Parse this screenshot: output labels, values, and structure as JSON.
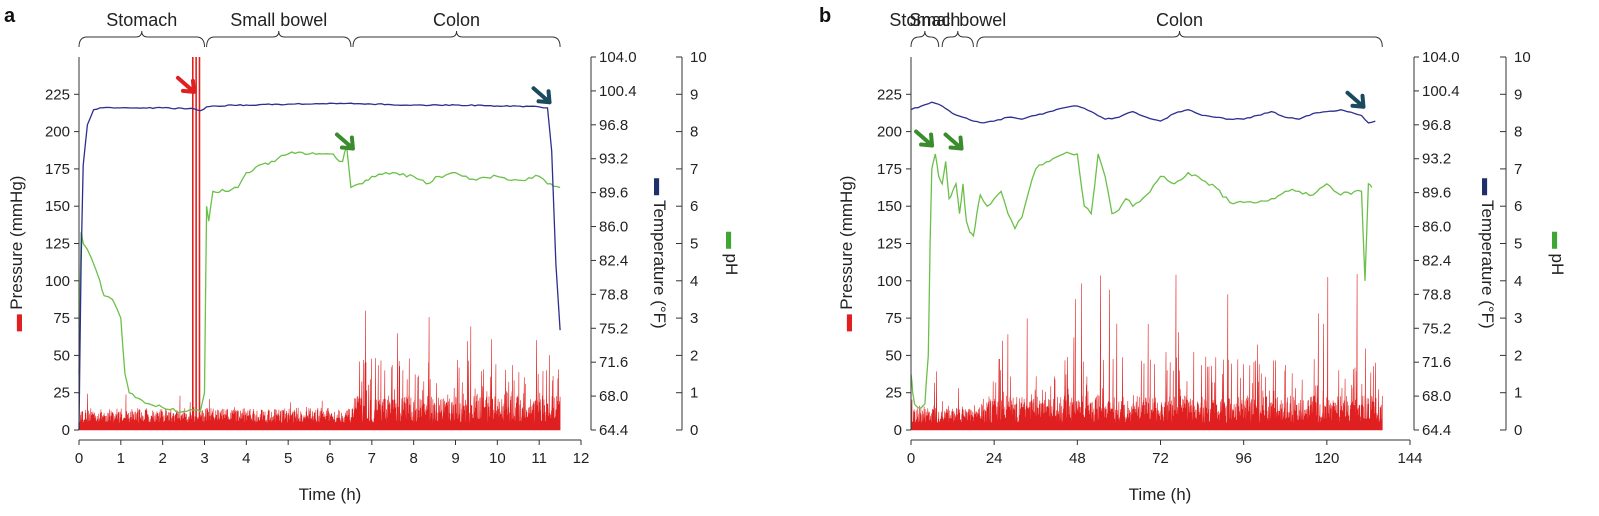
{
  "chart_data": [
    {
      "type": "line",
      "panel_label": "a",
      "xlabel": "Time (h)",
      "xlim": [
        0,
        12
      ],
      "x_ticks": [
        0,
        1,
        2,
        3,
        4,
        5,
        6,
        7,
        8,
        9,
        10,
        11,
        12
      ],
      "regions": [
        {
          "label": "Stomach",
          "start": 0,
          "end": 3.0
        },
        {
          "label": "Small bowel",
          "start": 3.05,
          "end": 6.5
        },
        {
          "label": "Colon",
          "start": 6.55,
          "end": 11.5
        }
      ],
      "y_axes": {
        "pressure": {
          "label": "Pressure (mmHg)",
          "ylim": [
            0,
            250
          ],
          "ticks": [
            0,
            25,
            50,
            75,
            100,
            125,
            150,
            175,
            200,
            225
          ],
          "color": "#e02020"
        },
        "temperature": {
          "label": "Temperature (°F)",
          "ylim": [
            64.4,
            104.0
          ],
          "ticks": [
            "64.4",
            "68.0",
            "71.6",
            "75.2",
            "78.8",
            "82.4",
            "86.0",
            "89.6",
            "93.2",
            "96.8",
            "100.4",
            "104.0"
          ],
          "color": "#1f2f6e"
        },
        "ph": {
          "label": "pH",
          "ylim": [
            0,
            10
          ],
          "ticks": [
            0,
            1,
            2,
            3,
            4,
            5,
            6,
            7,
            8,
            9,
            10
          ],
          "color": "#3fa535"
        }
      },
      "series": [
        {
          "key": "temperature",
          "color": "#2b2f8f",
          "x": [
            0,
            0.05,
            0.1,
            0.2,
            0.35,
            0.5,
            1,
            2,
            2.75,
            2.9,
            3.05,
            3.2,
            4,
            5,
            5.5,
            6,
            6.5,
            7,
            8,
            9,
            10,
            11,
            11.2,
            11.3,
            11.4,
            11.5
          ],
          "y": [
            64.4,
            82.0,
            92.5,
            96.8,
            98.4,
            98.6,
            98.6,
            98.6,
            98.5,
            98.3,
            98.7,
            98.8,
            98.9,
            99.0,
            99.0,
            99.1,
            99.1,
            99.0,
            98.9,
            98.9,
            98.8,
            98.7,
            98.6,
            94.0,
            82.0,
            75.0
          ]
        },
        {
          "key": "ph",
          "color": "#6cc04a",
          "x": [
            0,
            0.05,
            0.1,
            0.3,
            0.5,
            0.6,
            0.8,
            1.0,
            1.1,
            1.2,
            1.5,
            2.0,
            2.5,
            2.9,
            3.0,
            3.05,
            3.1,
            3.2,
            3.5,
            3.8,
            4.0,
            4.3,
            4.6,
            5.0,
            5.5,
            6.0,
            6.3,
            6.4,
            6.5,
            6.7,
            7.0,
            7.5,
            8.0,
            8.3,
            8.6,
            9.0,
            9.5,
            10.0,
            10.5,
            11.0,
            11.2,
            11.5
          ],
          "y": [
            1.5,
            5.3,
            5.0,
            4.6,
            4.0,
            3.6,
            3.5,
            3.0,
            1.5,
            1.0,
            0.8,
            0.6,
            0.5,
            0.5,
            1.0,
            6.0,
            5.6,
            6.4,
            6.4,
            6.5,
            6.9,
            7.1,
            7.2,
            7.4,
            7.4,
            7.4,
            7.2,
            7.6,
            6.5,
            6.6,
            6.8,
            6.9,
            6.8,
            6.6,
            6.8,
            6.9,
            6.7,
            6.8,
            6.7,
            6.8,
            6.6,
            6.5
          ]
        }
      ],
      "pressure_trace": {
        "color": "#e02020",
        "baseline_mmHg": 5,
        "typical_peak_mmHg": [
          10,
          25
        ],
        "colon_peaks_mmHg": [
          40,
          85
        ],
        "spikes_at_h": [
          2.72,
          2.8,
          2.88
        ],
        "spike_height_mmHg": 250
      },
      "arrows": [
        {
          "color": "#e02020",
          "x_h": 2.7,
          "y_mmHg": 228
        },
        {
          "color": "#3a8c2e",
          "x_h": 6.5,
          "y_mmHg": 190
        },
        {
          "color": "#1a4a5e",
          "x_h": 11.2,
          "y_mmHg": 221
        }
      ]
    },
    {
      "type": "line",
      "panel_label": "b",
      "xlabel": "Time (h)",
      "xlim": [
        0,
        144
      ],
      "x_ticks": [
        0,
        24,
        48,
        72,
        96,
        120,
        144
      ],
      "regions": [
        {
          "label": "Stomach",
          "start": 0,
          "end": 8
        },
        {
          "label": "Small bowel",
          "start": 9,
          "end": 18
        },
        {
          "label": "Colon",
          "start": 19,
          "end": 136
        }
      ],
      "y_axes": {
        "pressure": {
          "label": "Pressure (mmHg)",
          "ylim": [
            0,
            250
          ],
          "ticks": [
            0,
            25,
            50,
            75,
            100,
            125,
            150,
            175,
            200,
            225
          ],
          "color": "#e02020"
        },
        "temperature": {
          "label": "Temperature (°F)",
          "ylim": [
            64.4,
            104.0
          ],
          "ticks": [
            "64.4",
            "68.0",
            "71.6",
            "75.2",
            "78.8",
            "82.4",
            "86.0",
            "89.6",
            "93.2",
            "96.8",
            "100.4",
            "104.0"
          ],
          "color": "#1f2f6e"
        },
        "ph": {
          "label": "pH",
          "ylim": [
            0,
            10
          ],
          "ticks": [
            0,
            1,
            2,
            3,
            4,
            5,
            6,
            7,
            8,
            9,
            10
          ],
          "color": "#3fa535"
        }
      },
      "series": [
        {
          "key": "temperature",
          "color": "#2b2f8f",
          "x": [
            0,
            3,
            6,
            9,
            12,
            15,
            18,
            21,
            24,
            28,
            32,
            36,
            40,
            44,
            48,
            52,
            56,
            60,
            64,
            68,
            72,
            76,
            80,
            84,
            88,
            92,
            96,
            100,
            104,
            108,
            112,
            116,
            120,
            124,
            128,
            130,
            132,
            134
          ],
          "y": [
            98.4,
            98.8,
            99.2,
            98.8,
            98.0,
            97.6,
            97.2,
            97.0,
            97.2,
            97.6,
            97.4,
            97.8,
            98.2,
            98.6,
            98.8,
            98.2,
            97.4,
            97.6,
            98.2,
            97.6,
            97.2,
            98.0,
            98.4,
            97.8,
            97.6,
            97.4,
            97.4,
            97.8,
            98.2,
            97.6,
            97.4,
            98.0,
            98.2,
            98.4,
            98.0,
            97.8,
            97.0,
            97.2
          ]
        },
        {
          "key": "ph",
          "color": "#6cc04a",
          "x": [
            0,
            0.5,
            1,
            2,
            3,
            4,
            5,
            5.5,
            6,
            7,
            8,
            9,
            10,
            11,
            12,
            13,
            14,
            15,
            16,
            17,
            18,
            19,
            20,
            22,
            24,
            26,
            28,
            30,
            32,
            34,
            36,
            40,
            44,
            48,
            50,
            52,
            54,
            56,
            58,
            60,
            62,
            64,
            68,
            72,
            76,
            80,
            84,
            88,
            92,
            96,
            100,
            104,
            108,
            112,
            116,
            120,
            124,
            128,
            130,
            131,
            132,
            133
          ],
          "y": [
            1.5,
            1.0,
            0.7,
            0.6,
            0.6,
            0.7,
            2.0,
            5.0,
            7.0,
            7.4,
            6.8,
            6.6,
            7.2,
            6.2,
            6.4,
            6.6,
            5.8,
            6.6,
            5.6,
            5.3,
            5.2,
            5.8,
            6.3,
            6.0,
            6.2,
            6.4,
            5.8,
            5.4,
            5.7,
            6.4,
            7.0,
            7.2,
            7.4,
            7.4,
            6.0,
            5.8,
            7.4,
            6.8,
            5.8,
            5.9,
            6.2,
            6.0,
            6.3,
            6.8,
            6.6,
            6.9,
            6.7,
            6.5,
            6.1,
            6.1,
            6.1,
            6.2,
            6.4,
            6.4,
            6.3,
            6.6,
            6.3,
            6.4,
            6.4,
            4.0,
            6.6,
            6.5
          ]
        }
      ],
      "pressure_trace": {
        "color": "#e02020",
        "baseline_mmHg": 5,
        "typical_peak_mmHg": [
          15,
          45
        ],
        "colon_peaks_mmHg": [
          40,
          105
        ],
        "spikes_at_h": [],
        "spike_height_mmHg": 0
      },
      "arrows": [
        {
          "color": "#3a8c2e",
          "x_h": 5.5,
          "y_mmHg": 192
        },
        {
          "color": "#3a8c2e",
          "x_h": 14,
          "y_mmHg": 190
        },
        {
          "color": "#1a4a5e",
          "x_h": 130,
          "y_mmHg": 218
        }
      ]
    }
  ]
}
